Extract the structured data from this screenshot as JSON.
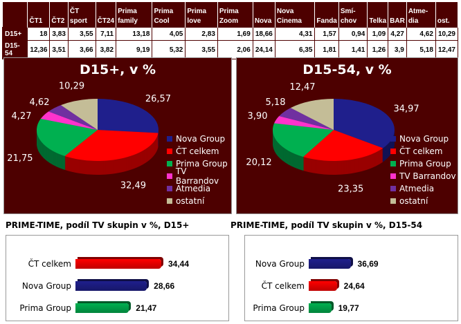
{
  "table": {
    "headers": [
      "",
      "ČT1",
      "ČT2",
      "ČT sport",
      "ČT24",
      "Prima family",
      "Prima Cool",
      "Prima love",
      "Prima Zoom",
      "Nova",
      "Nova Cinema",
      "Fanda",
      "Smí-chov",
      "Telka",
      "BAR",
      "Atme-dia",
      "ost."
    ],
    "rows": [
      {
        "label": "D15+",
        "values": [
          "18",
          "3,83",
          "3,55",
          "7,11",
          "13,18",
          "4,05",
          "2,83",
          "1,69",
          "18,66",
          "4,31",
          "1,57",
          "0,94",
          "1,09",
          "4,27",
          "4,62",
          "10,29"
        ]
      },
      {
        "label": "D15-54",
        "values": [
          "12,36",
          "3,51",
          "3,66",
          "3,82",
          "9,19",
          "5,32",
          "3,55",
          "2,06",
          "24,14",
          "6,35",
          "1,81",
          "1,41",
          "1,26",
          "3,9",
          "5,18",
          "12,47"
        ]
      }
    ]
  },
  "chart_data": [
    {
      "type": "pie",
      "title": "D15+, v %",
      "labels": [
        "Nova Group",
        "ČT celkem",
        "Prima Group",
        "TV Barrandov",
        "Atmedia",
        "ostatní"
      ],
      "values": [
        26.57,
        32.49,
        21.75,
        4.27,
        4.62,
        10.29
      ],
      "value_labels": [
        "26,57",
        "32,49",
        "21,75",
        "4,27",
        "4,62",
        "10,29"
      ],
      "colors": [
        "#1f1f8c",
        "#ff0000",
        "#00b050",
        "#ff33cc",
        "#7030a0",
        "#c4bd97"
      ],
      "legend": "right"
    },
    {
      "type": "pie",
      "title": "D15-54, v %",
      "labels": [
        "Nova Group",
        "ČT celkem",
        "Prima Group",
        "TV Barrandov",
        "Atmedia",
        "ostatní"
      ],
      "values": [
        34.97,
        23.35,
        20.12,
        3.9,
        5.18,
        12.47
      ],
      "value_labels": [
        "34,97",
        "23,35",
        "20,12",
        "3,90",
        "5,18",
        "12,47"
      ],
      "colors": [
        "#1f1f8c",
        "#ff0000",
        "#00b050",
        "#ff33cc",
        "#7030a0",
        "#c4bd97"
      ],
      "legend": "right"
    },
    {
      "type": "bar",
      "title": "PRIME-TIME, podíl TV skupin v %, D15+",
      "categories": [
        "ČT celkem",
        "Nova Group",
        "Prima Group"
      ],
      "values": [
        34.44,
        28.66,
        21.47
      ],
      "value_labels": [
        "34,44",
        "28,66",
        "21,47"
      ],
      "colors": [
        "#ff0000",
        "#1f1f8c",
        "#00b050"
      ]
    },
    {
      "type": "bar",
      "title": "PRIME-TIME, podíl TV skupin v %, D15-54",
      "categories": [
        "Nova Group",
        "ČT celkem",
        "Prima Group"
      ],
      "values": [
        36.69,
        24.64,
        19.77
      ],
      "value_labels": [
        "36,69",
        "24,64",
        "19,77"
      ],
      "colors": [
        "#1f1f8c",
        "#ff0000",
        "#00b050"
      ]
    }
  ]
}
